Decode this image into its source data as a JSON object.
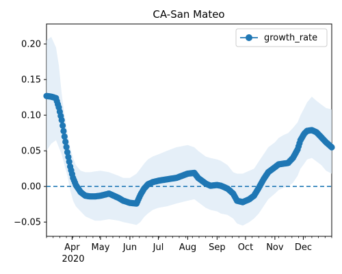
{
  "chart_data": {
    "type": "line",
    "title": "CA-San Mateo",
    "xlabel": "",
    "ylabel": "",
    "xlim": [
      "2020-03-05",
      "2020-12-31"
    ],
    "ylim": [
      -0.07,
      0.228
    ],
    "y_ticks": [
      "−0.05",
      "0.00",
      "0.05",
      "0.10",
      "0.15",
      "0.20"
    ],
    "y_tick_values": [
      -0.05,
      0.0,
      0.05,
      0.1,
      0.15,
      0.2
    ],
    "x_ticks": [
      {
        "date": "2020-04-01",
        "label": "Apr"
      },
      {
        "date": "2020-05-01",
        "label": "May"
      },
      {
        "date": "2020-06-01",
        "label": "Jun"
      },
      {
        "date": "2020-07-01",
        "label": "Jul"
      },
      {
        "date": "2020-08-01",
        "label": "Aug"
      },
      {
        "date": "2020-09-01",
        "label": "Sep"
      },
      {
        "date": "2020-10-01",
        "label": "Oct"
      },
      {
        "date": "2020-11-01",
        "label": "Nov"
      },
      {
        "date": "2020-12-01",
        "label": "Dec"
      }
    ],
    "year_label": "2020",
    "reference_line": {
      "y": 0.0,
      "style": "dashed",
      "color": "#1f77b4"
    },
    "legend": {
      "position": "top-right",
      "entries": [
        "growth_rate"
      ]
    },
    "colors": {
      "line": "#1f77b4",
      "band": "#dce9f5"
    },
    "series": [
      {
        "name": "growth_rate",
        "x": [
          "2020-03-05",
          "2020-03-10",
          "2020-03-15",
          "2020-03-18",
          "2020-03-21",
          "2020-03-24",
          "2020-03-27",
          "2020-03-30",
          "2020-04-02",
          "2020-04-05",
          "2020-04-10",
          "2020-04-15",
          "2020-04-20",
          "2020-04-25",
          "2020-05-01",
          "2020-05-10",
          "2020-05-20",
          "2020-05-25",
          "2020-06-01",
          "2020-06-08",
          "2020-06-12",
          "2020-06-16",
          "2020-06-20",
          "2020-06-25",
          "2020-07-01",
          "2020-07-10",
          "2020-07-20",
          "2020-08-01",
          "2020-08-08",
          "2020-08-12",
          "2020-08-20",
          "2020-08-25",
          "2020-09-01",
          "2020-09-05",
          "2020-09-12",
          "2020-09-18",
          "2020-09-22",
          "2020-09-28",
          "2020-10-05",
          "2020-10-10",
          "2020-10-15",
          "2020-10-20",
          "2020-10-25",
          "2020-11-01",
          "2020-11-05",
          "2020-11-10",
          "2020-11-15",
          "2020-11-20",
          "2020-11-25",
          "2020-11-28",
          "2020-12-02",
          "2020-12-05",
          "2020-12-10",
          "2020-12-15",
          "2020-12-20",
          "2020-12-25",
          "2020-12-31"
        ],
        "y": [
          0.127,
          0.126,
          0.124,
          0.111,
          0.093,
          0.07,
          0.048,
          0.028,
          0.012,
          0.002,
          -0.008,
          -0.013,
          -0.014,
          -0.014,
          -0.013,
          -0.01,
          -0.016,
          -0.02,
          -0.023,
          -0.024,
          -0.012,
          -0.003,
          0.003,
          0.006,
          0.008,
          0.01,
          0.012,
          0.018,
          0.019,
          0.012,
          0.004,
          0.001,
          0.002,
          0.001,
          -0.003,
          -0.01,
          -0.02,
          -0.022,
          -0.018,
          -0.013,
          -0.002,
          0.01,
          0.02,
          0.027,
          0.031,
          0.032,
          0.033,
          0.04,
          0.052,
          0.065,
          0.074,
          0.078,
          0.079,
          0.076,
          0.069,
          0.062,
          0.055
        ],
        "upper": [
          0.205,
          0.21,
          0.195,
          0.17,
          0.13,
          0.1,
          0.075,
          0.055,
          0.04,
          0.03,
          0.022,
          0.02,
          0.02,
          0.021,
          0.022,
          0.02,
          0.015,
          0.012,
          0.012,
          0.018,
          0.025,
          0.032,
          0.038,
          0.042,
          0.045,
          0.05,
          0.055,
          0.058,
          0.055,
          0.05,
          0.042,
          0.04,
          0.038,
          0.036,
          0.03,
          0.02,
          0.018,
          0.018,
          0.022,
          0.025,
          0.035,
          0.045,
          0.055,
          0.062,
          0.068,
          0.072,
          0.075,
          0.082,
          0.09,
          0.1,
          0.11,
          0.118,
          0.126,
          0.12,
          0.115,
          0.11,
          0.108
        ],
        "lower": [
          0.05,
          0.06,
          0.065,
          0.055,
          0.045,
          0.03,
          0.015,
          -0.005,
          -0.02,
          -0.028,
          -0.035,
          -0.042,
          -0.045,
          -0.048,
          -0.048,
          -0.046,
          -0.048,
          -0.05,
          -0.052,
          -0.054,
          -0.05,
          -0.043,
          -0.038,
          -0.033,
          -0.03,
          -0.028,
          -0.024,
          -0.02,
          -0.018,
          -0.022,
          -0.03,
          -0.033,
          -0.035,
          -0.038,
          -0.04,
          -0.045,
          -0.052,
          -0.055,
          -0.05,
          -0.045,
          -0.038,
          -0.028,
          -0.018,
          -0.01,
          -0.005,
          -0.002,
          0.0,
          0.005,
          0.015,
          0.025,
          0.032,
          0.038,
          0.04,
          0.035,
          0.03,
          0.022,
          0.018
        ]
      }
    ]
  }
}
